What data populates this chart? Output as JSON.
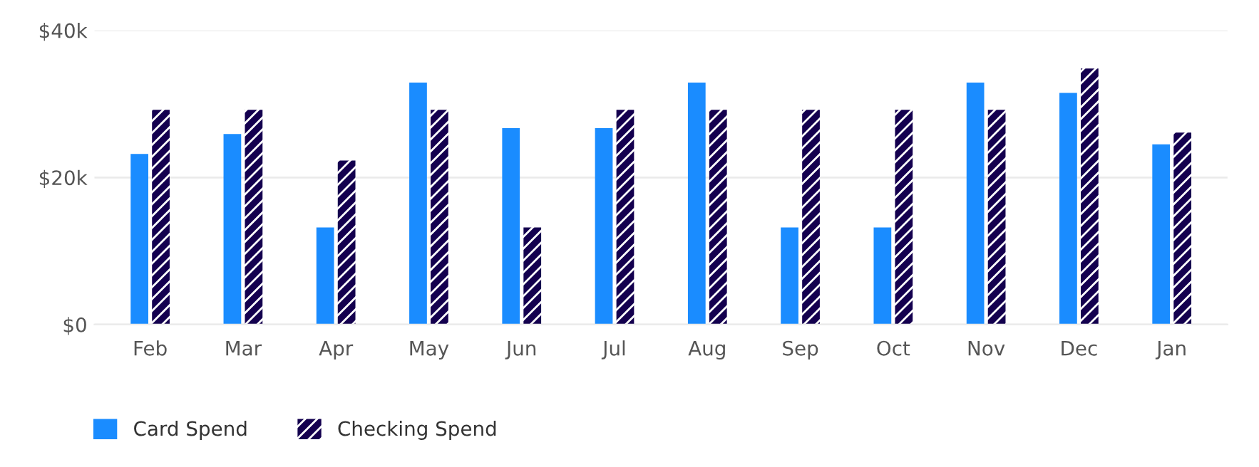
{
  "chart_data": {
    "type": "bar",
    "categories": [
      "Feb",
      "Mar",
      "Apr",
      "May",
      "Jun",
      "Jul",
      "Aug",
      "Sep",
      "Oct",
      "Nov",
      "Dec",
      "Jan"
    ],
    "series": [
      {
        "name": "Card Spend",
        "color": "#1a8cff",
        "values": [
          23200,
          25900,
          13200,
          32900,
          26700,
          26700,
          32900,
          13200,
          13200,
          32900,
          31500,
          24500
        ]
      },
      {
        "name": "Checking Spend",
        "color": "#14004f",
        "values": [
          29200,
          29200,
          22300,
          29200,
          13200,
          29200,
          29200,
          29200,
          29200,
          29200,
          34800,
          26100
        ]
      }
    ],
    "ylim": [
      0,
      40000
    ],
    "yticks": [
      {
        "value": 0,
        "label": "$0"
      },
      {
        "value": 20000,
        "label": "$20k"
      },
      {
        "value": 40000,
        "label": "$40k"
      }
    ],
    "grid": "y",
    "legend": "bottom left"
  }
}
